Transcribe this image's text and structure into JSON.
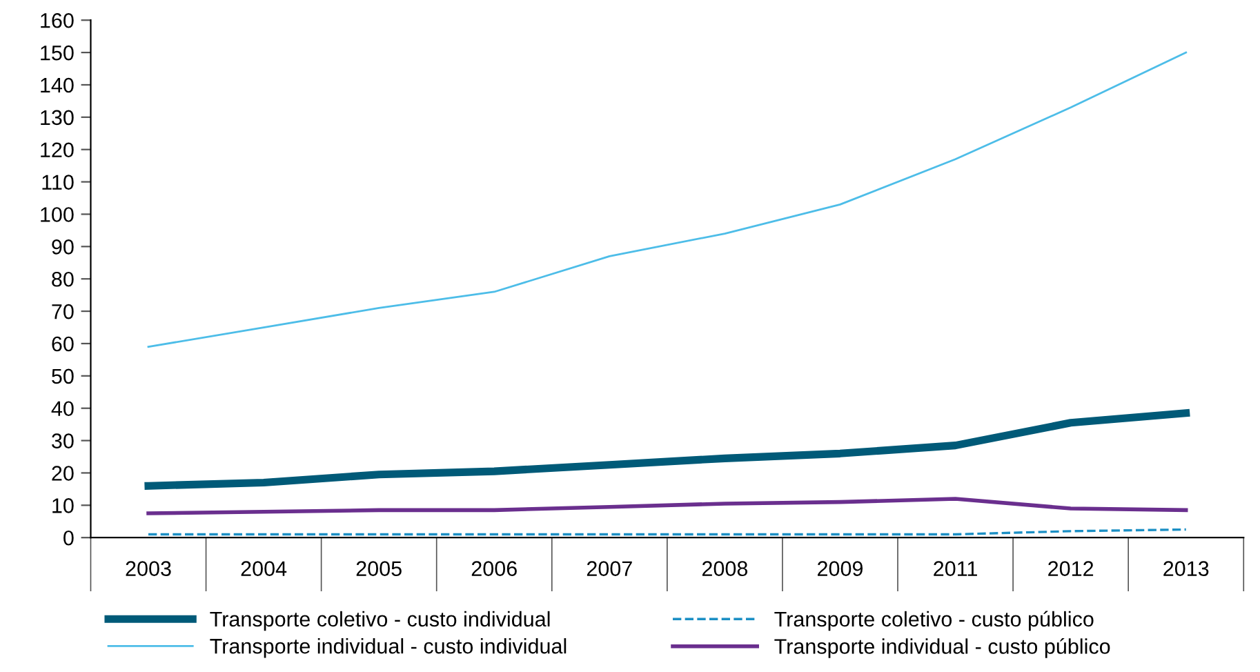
{
  "chart_data": {
    "type": "line",
    "categories": [
      "2003",
      "2004",
      "2005",
      "2006",
      "2007",
      "2008",
      "2009",
      "2011",
      "2012",
      "2013"
    ],
    "ylim": [
      0,
      160
    ],
    "yticks": [
      0,
      10,
      20,
      30,
      40,
      50,
      60,
      70,
      80,
      90,
      100,
      110,
      120,
      130,
      140,
      150,
      160
    ],
    "grid": false,
    "legend": "bottom",
    "marker": "none",
    "series": [
      {
        "name": "Transporte coletivo - custo individual",
        "color": "#005a78",
        "line_style": "solid",
        "values": [
          16,
          17,
          19.5,
          20.5,
          22.5,
          24.5,
          26,
          28.5,
          35.5,
          38.5
        ]
      },
      {
        "name": "Transporte coletivo - custo público",
        "color": "#1b8fc4",
        "line_style": "dashed",
        "values": [
          1,
          1,
          1,
          1,
          1,
          1,
          1,
          1,
          2,
          2.5
        ]
      },
      {
        "name": "Transporte individual - custo individual",
        "color": "#4dbde8",
        "line_style": "solid",
        "values": [
          59,
          65,
          71,
          76,
          87,
          94,
          103,
          117,
          133,
          150
        ]
      },
      {
        "name": "Transporte individual - custo público",
        "color": "#6a2f8e",
        "line_style": "solid",
        "values": [
          7.5,
          8,
          8.5,
          8.5,
          9.5,
          10.5,
          11,
          12,
          9,
          8.5
        ]
      }
    ]
  }
}
